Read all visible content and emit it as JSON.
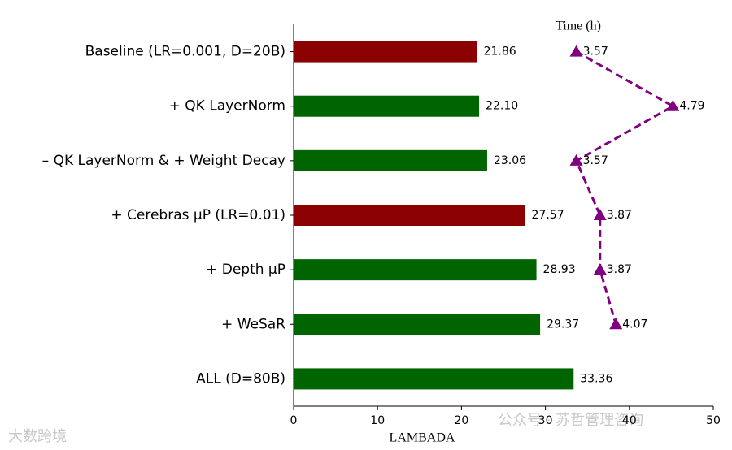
{
  "chart_data": {
    "type": "bar",
    "orientation": "horizontal",
    "categories": [
      "Baseline (LR=0.001, D=20B)",
      "+ QK LayerNorm",
      "– QK LayerNorm & + Weight Decay",
      "+ Cerebras μP (LR=0.01)",
      "+ Depth μP",
      "+ WeSaR",
      "ALL (D=80B)"
    ],
    "values": [
      21.86,
      22.1,
      23.06,
      27.57,
      28.93,
      29.37,
      33.36
    ],
    "value_labels": [
      "21.86",
      "22.10",
      "23.06",
      "27.57",
      "28.93",
      "29.37",
      "33.36"
    ],
    "colors": [
      "#8b0000",
      "#006400",
      "#006400",
      "#8b0000",
      "#006400",
      "#006400",
      "#006400"
    ],
    "xlim": [
      0,
      50
    ],
    "xticks": [
      0,
      10,
      20,
      30,
      40,
      50
    ],
    "xlabel": "LAMBADA",
    "line": {
      "type": "line",
      "label": "Time (h)",
      "axis": "x2",
      "values": [
        3.57,
        4.79,
        3.57,
        3.87,
        3.87,
        4.07,
        null
      ],
      "color": "#800080",
      "dashed": true
    },
    "x2lim": [
      0,
      5.3
    ],
    "watermarks": [
      "大数跨境",
      "公众号 · 苏哲管理咨询"
    ]
  }
}
